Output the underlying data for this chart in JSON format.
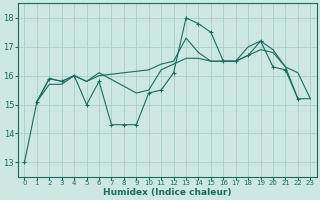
{
  "xlabel": "Humidex (Indice chaleur)",
  "xlim": [
    -0.5,
    23.5
  ],
  "ylim": [
    12.5,
    18.5
  ],
  "yticks": [
    13,
    14,
    15,
    16,
    17,
    18
  ],
  "xticks": [
    0,
    1,
    2,
    3,
    4,
    5,
    6,
    7,
    8,
    9,
    10,
    11,
    12,
    13,
    14,
    15,
    16,
    17,
    18,
    19,
    20,
    21,
    22,
    23
  ],
  "bg_color": "#cde8e2",
  "grid_color": "#aacfc8",
  "line_color": "#1a6b5e",
  "line1_x": [
    0,
    1,
    2,
    3,
    4,
    5,
    6,
    7,
    8,
    9,
    10,
    11,
    12,
    13,
    14,
    15,
    16,
    17,
    18,
    19,
    20,
    21,
    22
  ],
  "line1_y": [
    13.0,
    15.1,
    15.9,
    15.8,
    16.0,
    15.0,
    15.8,
    14.3,
    14.3,
    14.3,
    15.4,
    15.5,
    16.1,
    18.0,
    17.8,
    17.5,
    16.5,
    16.5,
    16.7,
    17.2,
    16.3,
    16.2,
    15.2
  ],
  "line2_x": [
    1,
    2,
    3,
    4,
    5,
    6,
    9,
    10,
    11,
    12,
    13,
    14,
    15,
    16,
    17,
    18,
    19,
    20,
    21,
    22,
    23
  ],
  "line2_y": [
    15.1,
    15.9,
    15.8,
    16.0,
    15.8,
    16.1,
    15.4,
    15.5,
    16.2,
    16.4,
    16.6,
    16.6,
    16.5,
    16.5,
    16.5,
    16.7,
    16.9,
    16.8,
    16.3,
    15.2,
    15.2
  ],
  "line3_x": [
    1,
    2,
    3,
    4,
    5,
    6,
    10,
    11,
    12,
    13,
    14,
    15,
    16,
    17,
    18,
    19,
    20,
    21,
    22,
    23
  ],
  "line3_y": [
    15.1,
    15.7,
    15.7,
    16.0,
    15.8,
    16.0,
    16.2,
    16.4,
    16.5,
    17.3,
    16.8,
    16.5,
    16.5,
    16.5,
    17.0,
    17.2,
    16.9,
    16.3,
    16.1,
    15.2
  ]
}
